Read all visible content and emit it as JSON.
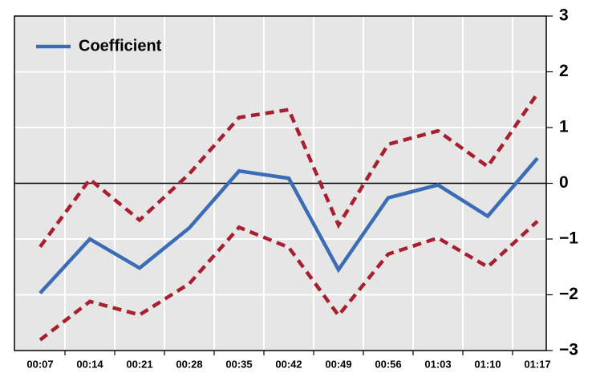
{
  "chart_data": {
    "type": "line",
    "categories": [
      "00:07",
      "00:14",
      "00:21",
      "00:28",
      "00:35",
      "00:42",
      "00:49",
      "00:56",
      "01:03",
      "01:10",
      "01:17"
    ],
    "series": [
      {
        "name": "Coefficient",
        "color": "#3a6db5",
        "values": [
          -1.97,
          -1.0,
          -1.52,
          -0.8,
          0.22,
          0.09,
          -1.55,
          -0.26,
          -0.03,
          -0.59,
          0.45
        ]
      },
      {
        "color": "#a8202f",
        "dashed": true,
        "values": [
          -1.14,
          0.07,
          -0.66,
          0.17,
          1.18,
          1.32,
          -0.75,
          0.7,
          0.94,
          0.3,
          1.61
        ]
      },
      {
        "color": "#a8202f",
        "dashed": true,
        "values": [
          -2.81,
          -2.12,
          -2.36,
          -1.8,
          -0.79,
          -1.15,
          -2.37,
          -1.27,
          -0.98,
          -1.5,
          -0.68
        ]
      }
    ],
    "ylim": [
      -3,
      3
    ],
    "yticks": [
      {
        "value": -3,
        "label": "−3"
      },
      {
        "value": -2,
        "label": "−2"
      },
      {
        "value": -1,
        "label": "−1"
      },
      0,
      1,
      2,
      3
    ],
    "grid": true,
    "legend": "top-left"
  }
}
